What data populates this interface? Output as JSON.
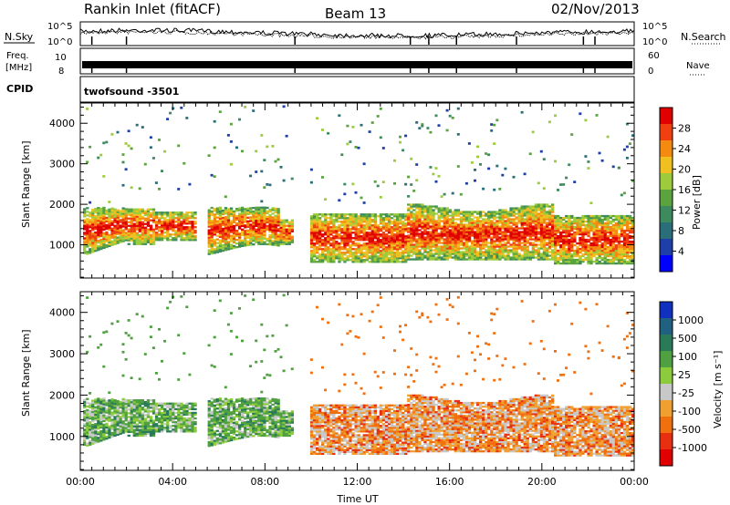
{
  "header": {
    "station": "Rankin Inlet (fitACF)",
    "beam": "Beam 13",
    "date": "02/Nov/2013"
  },
  "strips": {
    "nsky_label": "N.Sky",
    "nsky_ticks": [
      "10^5",
      "10^0"
    ],
    "nsearch_label": "N.Search",
    "nsearch_ticks": [
      "10^5",
      "10^0"
    ],
    "freq_label_line1": "Freq.",
    "freq_label_line2": "[MHz]",
    "freq_ticks": [
      "10",
      "8"
    ],
    "nave_label": "Nave",
    "nave_ticks": [
      "60",
      "0"
    ],
    "cpid_label": "CPID",
    "cpid_value": "twofsound -3501"
  },
  "colors": {
    "power": [
      "#0000ff",
      "#1f3fa8",
      "#2a6e7a",
      "#3c8a5e",
      "#5aa33f",
      "#9ccc3c",
      "#f0c020",
      "#f58a10",
      "#f04010",
      "#e00000"
    ],
    "velocity": [
      "#1030c0",
      "#206080",
      "#2a7a5a",
      "#4ea040",
      "#8ccc3c",
      "#c8c8c8",
      "#f0a030",
      "#f07010",
      "#e83010",
      "#e00000"
    ]
  },
  "chart_data": [
    {
      "type": "heatmap",
      "name": "power",
      "x_ticks": [
        "00:00",
        "04:00",
        "08:00",
        "12:00",
        "16:00",
        "20:00",
        "00:00"
      ],
      "x_range_hours": [
        0,
        24
      ],
      "ylabel": "Slant Range [km]",
      "ylim": [
        180,
        4500
      ],
      "y_ticks": [
        1000,
        2000,
        3000,
        4000
      ],
      "colorbar": {
        "label": "Power [dB]",
        "ticks": [
          "4",
          "8",
          "12",
          "16",
          "20",
          "24",
          "28"
        ],
        "range": [
          0,
          30
        ]
      }
    },
    {
      "type": "heatmap",
      "name": "velocity",
      "x_ticks": [
        "00:00",
        "04:00",
        "08:00",
        "12:00",
        "16:00",
        "20:00",
        "00:00"
      ],
      "x_range_hours": [
        0,
        24
      ],
      "xlabel": "Time UT",
      "ylabel": "Slant Range [km]",
      "ylim": [
        180,
        4500
      ],
      "y_ticks": [
        1000,
        2000,
        3000,
        4000
      ],
      "colorbar": {
        "label": "Velocity [m s⁻¹]",
        "ticks": [
          "1000",
          "500",
          "100",
          "25",
          "-25",
          "-100",
          "-500",
          "-1000"
        ]
      }
    }
  ]
}
